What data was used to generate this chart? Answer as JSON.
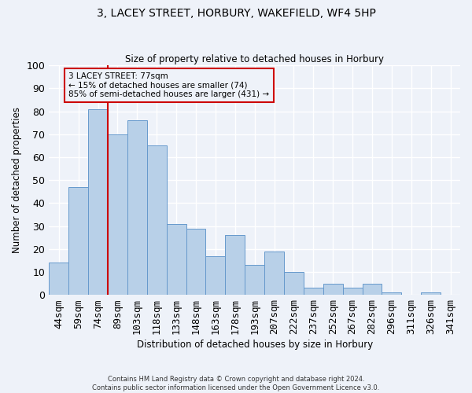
{
  "title": "3, LACEY STREET, HORBURY, WAKEFIELD, WF4 5HP",
  "subtitle": "Size of property relative to detached houses in Horbury",
  "xlabel": "Distribution of detached houses by size in Horbury",
  "ylabel": "Number of detached properties",
  "categories": [
    "44sqm",
    "59sqm",
    "74sqm",
    "89sqm",
    "103sqm",
    "118sqm",
    "133sqm",
    "148sqm",
    "163sqm",
    "178sqm",
    "193sqm",
    "207sqm",
    "222sqm",
    "237sqm",
    "252sqm",
    "267sqm",
    "282sqm",
    "296sqm",
    "311sqm",
    "326sqm",
    "341sqm"
  ],
  "values": [
    14,
    47,
    81,
    70,
    76,
    65,
    31,
    29,
    17,
    26,
    13,
    19,
    10,
    3,
    5,
    3,
    5,
    1,
    0,
    1,
    0
  ],
  "bar_color": "#b8d0e8",
  "bar_edge_color": "#6699cc",
  "bar_width": 1.0,
  "vline_index": 2,
  "vline_color": "#cc0000",
  "annotation_text": "3 LACEY STREET: 77sqm\n← 15% of detached houses are smaller (74)\n85% of semi-detached houses are larger (431) →",
  "annotation_box_color": "#cc0000",
  "annotation_fontsize": 7.5,
  "ylim": [
    0,
    100
  ],
  "yticks": [
    0,
    10,
    20,
    30,
    40,
    50,
    60,
    70,
    80,
    90,
    100
  ],
  "background_color": "#eef2f9",
  "grid_color": "#ffffff",
  "footer_line1": "Contains HM Land Registry data © Crown copyright and database right 2024.",
  "footer_line2": "Contains public sector information licensed under the Open Government Licence v3.0."
}
